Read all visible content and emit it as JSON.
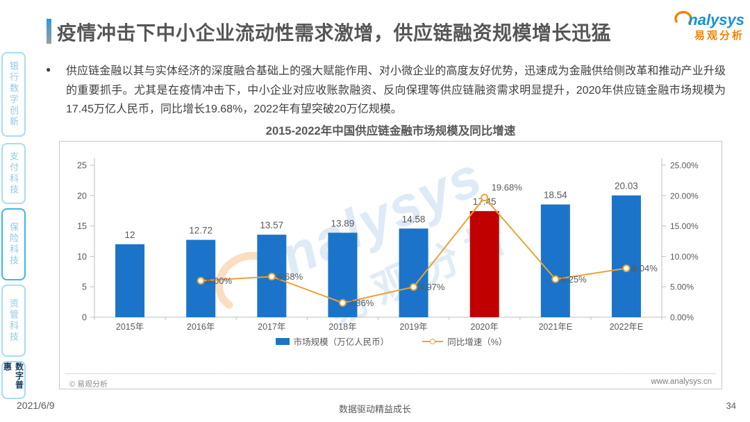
{
  "header": {
    "title": "疫情冲击下中小企业流动性需求激增，供应链融资规模增长迅猛"
  },
  "logo": {
    "brand": "nalysys",
    "brand_cn": "易观分析",
    "brand_color": "#1593d2",
    "accent_color": "#f08300"
  },
  "sidebar": {
    "items": [
      {
        "label": "银行数字创新"
      },
      {
        "label": "支付科技"
      },
      {
        "label": "保险科技"
      },
      {
        "label": "资管科技"
      },
      {
        "label": "数字普惠"
      }
    ],
    "active_item": "数字普惠"
  },
  "summary": {
    "bullet_text": "供应链金融以其与实体经济的深度融合基础上的强大赋能作用、对小微企业的高度友好优势，迅速成为金融供给侧改革和推动产业升级的重要抓手。尤其是在疫情冲击下，中小企业对应收账款融资、反向保理等供应链融资需求明显提升，2020年供应链金融市场规模为17.45万亿人民币，同比增长19.68%，2022年有望突破20万亿规模。"
  },
  "chart_data": {
    "type": "bar+line",
    "title": "2015-2022年中国供应链金融市场规模及同比增速",
    "categories": [
      "2015年",
      "2016年",
      "2017年",
      "2018年",
      "2019年",
      "2020年",
      "2021年E",
      "2022年E"
    ],
    "series": [
      {
        "name": "市场规模（万亿人民币）",
        "type": "bar",
        "values": [
          12,
          12.72,
          13.57,
          13.89,
          14.58,
          17.45,
          18.54,
          20.03
        ],
        "value_labels": [
          "12",
          "12.72",
          "13.57",
          "13.89",
          "14.58",
          "17.45",
          "18.54",
          "20.03"
        ]
      },
      {
        "name": "同比增速（%）",
        "type": "line",
        "values": [
          null,
          6.0,
          6.68,
          2.36,
          4.97,
          19.68,
          6.25,
          8.04
        ],
        "value_labels": [
          "",
          "6.00%",
          "6.68%",
          "2.36%",
          "4.97%",
          "19.68%",
          "6.25%",
          "8.04%"
        ]
      }
    ],
    "left_axis": {
      "min": 0,
      "max": 25,
      "ticks": [
        25,
        20,
        15,
        10,
        5,
        0
      ]
    },
    "right_axis": {
      "min": 0,
      "max": 25,
      "tick_values": [
        25,
        20,
        15,
        10,
        5,
        0
      ],
      "ticks": [
        "25.00%",
        "20.00%",
        "15.00%",
        "10.00%",
        "5.00%",
        "0.00%"
      ]
    },
    "highlight_index": 5,
    "grid": false,
    "legend_position": "bottom",
    "colors": {
      "bar": "#1b74c9",
      "bar_highlight": "#c00000",
      "line": "#eba232",
      "axis": "#bfbfbf",
      "label": "#595959"
    }
  },
  "panel_footer": {
    "copyright": "© 易观分析",
    "website": "www.analysys.cn"
  },
  "page_footer": {
    "date": "2021/6/9",
    "slogan": "数据驱动精益成长",
    "page_number": "34"
  },
  "watermark": {
    "brand": "nalysys",
    "brand_cn": "易观分析"
  }
}
